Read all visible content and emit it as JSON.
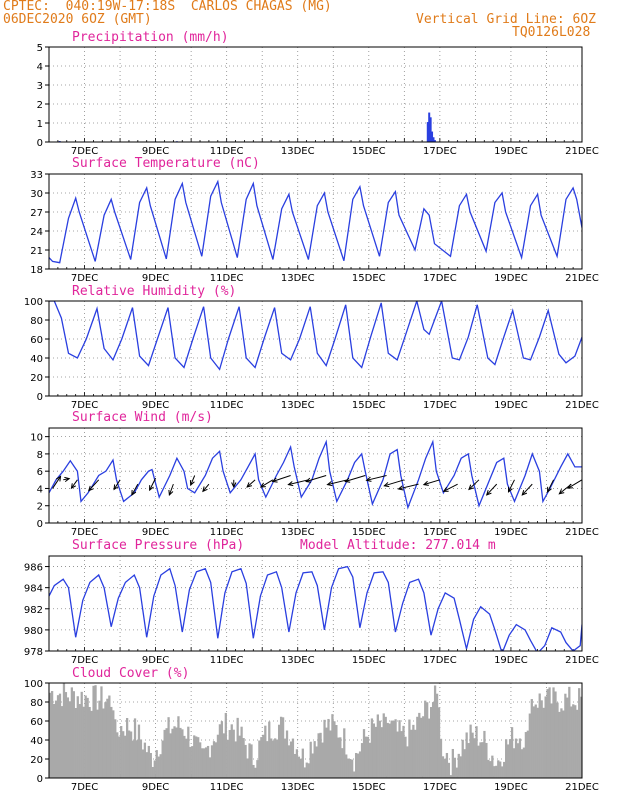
{
  "header": {
    "left_line1": "CPTEC:  040:19W-17:18S  CARLOS CHAGAS (MG)",
    "left_line2": "06DEC2020 6OZ (GMT)",
    "right_line1": "Vertical Grid Line: 6OZ",
    "right_line2": "TQ0126L028",
    "color": "#e07b1a"
  },
  "colors": {
    "line": "#2a3fe0",
    "title": "#e0259b",
    "bar": "#a9a9a9",
    "wind": "#000000"
  },
  "x_labels": [
    "7DEC",
    "9DEC",
    "11DEC",
    "13DEC",
    "15DEC",
    "17DEC",
    "19DEC",
    "21DEC"
  ],
  "chart_data": [
    {
      "type": "bar",
      "title": "Precipitation (mm/h)",
      "ylim": [
        0,
        5
      ],
      "yticks": [
        0,
        1,
        2,
        3,
        4,
        5
      ],
      "xlim_days": [
        0,
        15
      ],
      "series": [
        {
          "values": [
            [
              0.3,
              0.05
            ],
            [
              1.0,
              0.03
            ],
            [
              2.2,
              0.02
            ],
            [
              3.0,
              0.03
            ],
            [
              3.6,
              0.04
            ],
            [
              4.2,
              0.02
            ],
            [
              5.0,
              0.03
            ],
            [
              10.66,
              1.05
            ],
            [
              10.7,
              1.55
            ],
            [
              10.74,
              1.3
            ],
            [
              10.78,
              0.55
            ],
            [
              10.82,
              0.25
            ],
            [
              10.86,
              0.1
            ],
            [
              11.5,
              0.03
            ],
            [
              12.4,
              0.02
            ],
            [
              13.3,
              0.03
            ],
            [
              14.2,
              0.02
            ]
          ]
        }
      ]
    },
    {
      "type": "line",
      "title": "Surface Temperature (nC)",
      "ylim": [
        18,
        33
      ],
      "yticks": [
        18,
        21,
        24,
        27,
        30,
        33
      ],
      "xlim_days": [
        0,
        15
      ],
      "series": [
        {
          "x": [
            0,
            0.1,
            0.3,
            0.55,
            0.75,
            0.85,
            1.3,
            1.55,
            1.75,
            1.85,
            2.3,
            2.55,
            2.75,
            2.85,
            3.3,
            3.55,
            3.75,
            3.85,
            4.3,
            4.55,
            4.75,
            4.85,
            5.3,
            5.55,
            5.75,
            5.85,
            6.3,
            6.55,
            6.75,
            6.85,
            7.3,
            7.55,
            7.75,
            7.85,
            8.3,
            8.55,
            8.75,
            8.85,
            9.3,
            9.55,
            9.75,
            9.85,
            10.3,
            10.55,
            10.7,
            10.85,
            11.3,
            11.55,
            11.75,
            11.85,
            12.3,
            12.55,
            12.75,
            12.85,
            13.3,
            13.55,
            13.75,
            13.85,
            14.3,
            14.55,
            14.75,
            14.85,
            15
          ],
          "y": [
            19.8,
            19.2,
            19.0,
            26.0,
            29.2,
            27.0,
            19.2,
            26.5,
            29.0,
            27.0,
            19.5,
            28.5,
            30.8,
            28.0,
            19.6,
            29.0,
            31.5,
            28.5,
            20.0,
            29.5,
            31.8,
            28.5,
            19.8,
            29.0,
            31.5,
            28.0,
            19.5,
            27.5,
            29.8,
            27.0,
            19.5,
            28.0,
            30.0,
            27.0,
            19.3,
            29.0,
            31.0,
            28.0,
            20.0,
            28.5,
            30.2,
            26.5,
            21.0,
            27.5,
            26.5,
            22.0,
            20.0,
            28.0,
            29.8,
            27.0,
            20.8,
            28.5,
            30.0,
            27.0,
            19.8,
            28.0,
            29.8,
            26.5,
            20.0,
            29.0,
            30.8,
            29.0,
            24.5
          ]
        }
      ]
    },
    {
      "type": "line",
      "title": "Relative Humidity (%)",
      "ylim": [
        0,
        100
      ],
      "yticks": [
        0,
        20,
        40,
        60,
        80,
        100
      ],
      "xlim_days": [
        0,
        15
      ],
      "series": [
        {
          "x": [
            0,
            0.15,
            0.35,
            0.55,
            0.8,
            1.05,
            1.35,
            1.55,
            1.8,
            2.05,
            2.35,
            2.55,
            2.8,
            3.05,
            3.35,
            3.55,
            3.8,
            4.05,
            4.35,
            4.55,
            4.8,
            5.05,
            5.35,
            5.55,
            5.8,
            6.05,
            6.35,
            6.55,
            6.8,
            7.05,
            7.35,
            7.55,
            7.8,
            8.05,
            8.35,
            8.55,
            8.8,
            9.05,
            9.35,
            9.55,
            9.8,
            10.05,
            10.35,
            10.55,
            10.7,
            10.85,
            11.05,
            11.35,
            11.55,
            11.8,
            12.05,
            12.35,
            12.55,
            12.8,
            13.05,
            13.35,
            13.55,
            13.8,
            14.05,
            14.35,
            14.55,
            14.8,
            15
          ],
          "y": [
            100,
            100,
            82,
            45,
            40,
            60,
            92,
            50,
            38,
            60,
            93,
            42,
            32,
            60,
            93,
            40,
            30,
            60,
            94,
            40,
            28,
            60,
            94,
            40,
            30,
            60,
            93,
            45,
            38,
            60,
            94,
            45,
            32,
            60,
            96,
            40,
            30,
            62,
            98,
            45,
            38,
            66,
            100,
            70,
            65,
            80,
            100,
            40,
            38,
            62,
            96,
            40,
            33,
            62,
            90,
            40,
            38,
            62,
            90,
            44,
            35,
            42,
            62
          ]
        }
      ]
    },
    {
      "type": "line",
      "title": "Surface Wind (m/s)",
      "ylim": [
        0,
        11
      ],
      "yticks": [
        0,
        2,
        4,
        6,
        8,
        10
      ],
      "xlim_days": [
        0,
        15
      ],
      "series": [
        {
          "x": [
            0,
            0.2,
            0.4,
            0.6,
            0.8,
            0.9,
            1.1,
            1.4,
            1.6,
            1.8,
            1.9,
            2.1,
            2.4,
            2.6,
            2.8,
            2.9,
            3.1,
            3.4,
            3.6,
            3.8,
            3.9,
            4.1,
            4.4,
            4.6,
            4.8,
            4.9,
            5.1,
            5.4,
            5.6,
            5.8,
            5.9,
            6.1,
            6.4,
            6.6,
            6.8,
            6.9,
            7.1,
            7.4,
            7.6,
            7.8,
            7.9,
            8.1,
            8.4,
            8.6,
            8.8,
            8.9,
            9.1,
            9.4,
            9.6,
            9.8,
            9.9,
            10.1,
            10.4,
            10.6,
            10.8,
            10.9,
            11.1,
            11.4,
            11.6,
            11.8,
            11.9,
            12.1,
            12.4,
            12.6,
            12.8,
            12.9,
            13.1,
            13.4,
            13.6,
            13.8,
            13.9,
            14.1,
            14.4,
            14.6,
            14.8,
            15
          ],
          "y": [
            3.5,
            5.0,
            6.0,
            7.2,
            6.0,
            2.5,
            3.5,
            5.5,
            6.0,
            7.3,
            5.0,
            2.5,
            3.5,
            5.0,
            6.0,
            6.2,
            3.0,
            5.5,
            7.5,
            6.0,
            4.0,
            3.5,
            5.5,
            7.5,
            8.3,
            6.0,
            3.5,
            5.0,
            6.5,
            8.0,
            5.0,
            3.0,
            5.5,
            7.0,
            8.8,
            6.5,
            3.0,
            5.0,
            7.5,
            9.4,
            6.0,
            2.5,
            5.0,
            7.0,
            8.0,
            6.0,
            2.2,
            5.0,
            8.0,
            8.5,
            5.5,
            1.8,
            5.0,
            7.5,
            9.4,
            6.0,
            3.5,
            5.5,
            7.5,
            8.0,
            5.5,
            2.0,
            5.0,
            7.0,
            7.5,
            4.5,
            2.5,
            5.5,
            8.0,
            6.0,
            2.5,
            4.0,
            6.5,
            8.0,
            6.5,
            6.5
          ]
        }
      ],
      "wind_arrows": [
        [
          0.1,
          4.0,
          0.4,
          1.0
        ],
        [
          0.4,
          5.0,
          0.3,
          0.1
        ],
        [
          0.8,
          5.0,
          -0.3,
          -0.7
        ],
        [
          1.4,
          5.0,
          -0.5,
          -0.9
        ],
        [
          2.0,
          5.0,
          -0.3,
          -0.8
        ],
        [
          2.5,
          4.5,
          -0.3,
          -0.9
        ],
        [
          3.0,
          5.2,
          -0.3,
          -1.0
        ],
        [
          3.5,
          4.5,
          -0.2,
          -0.9
        ],
        [
          4.1,
          5.5,
          -0.2,
          -0.8
        ],
        [
          4.5,
          4.5,
          -0.3,
          -0.6
        ],
        [
          5.2,
          5.0,
          0.0,
          -0.6
        ],
        [
          5.8,
          5.0,
          -0.4,
          -0.6
        ],
        [
          6.3,
          5.0,
          -0.6,
          -0.6
        ],
        [
          6.8,
          5.5,
          -0.9,
          -0.5
        ],
        [
          7.3,
          5.0,
          -1.0,
          -0.4
        ],
        [
          7.8,
          5.5,
          -1.0,
          -0.5
        ],
        [
          8.4,
          5.0,
          -1.0,
          -0.4
        ],
        [
          8.9,
          5.5,
          -1.0,
          -0.5
        ],
        [
          9.5,
          5.5,
          -1.0,
          -0.4
        ],
        [
          10.0,
          5.0,
          -1.0,
          -0.5
        ],
        [
          10.4,
          4.5,
          -1.0,
          -0.4
        ],
        [
          11.0,
          5.0,
          -0.8,
          -0.4
        ],
        [
          11.5,
          4.5,
          -0.7,
          -0.6
        ],
        [
          12.1,
          5.0,
          -0.5,
          -0.8
        ],
        [
          12.6,
          4.5,
          -0.5,
          -0.9
        ],
        [
          13.1,
          5.0,
          -0.3,
          -1.0
        ],
        [
          13.6,
          4.5,
          -0.5,
          -0.9
        ],
        [
          14.2,
          5.0,
          -0.3,
          -1.0
        ],
        [
          14.7,
          4.5,
          -0.6,
          -0.8
        ],
        [
          15.0,
          5.0,
          -0.7,
          -0.7
        ]
      ]
    },
    {
      "type": "line",
      "title": "Surface Pressure (hPa)",
      "annotation": "Model Altitude: 277.014 m",
      "ylim": [
        978,
        987
      ],
      "yticks": [
        978,
        980,
        982,
        984,
        986
      ],
      "xlim_days": [
        0,
        15
      ],
      "series": [
        {
          "x": [
            0,
            0.15,
            0.4,
            0.55,
            0.75,
            0.95,
            1.15,
            1.4,
            1.55,
            1.75,
            1.95,
            2.15,
            2.4,
            2.55,
            2.75,
            2.95,
            3.15,
            3.4,
            3.55,
            3.75,
            3.95,
            4.15,
            4.4,
            4.55,
            4.75,
            4.95,
            5.15,
            5.4,
            5.55,
            5.75,
            5.95,
            6.15,
            6.4,
            6.55,
            6.75,
            6.95,
            7.15,
            7.4,
            7.55,
            7.75,
            7.95,
            8.15,
            8.4,
            8.55,
            8.75,
            8.95,
            9.15,
            9.4,
            9.55,
            9.75,
            9.95,
            10.15,
            10.4,
            10.55,
            10.75,
            10.95,
            11.15,
            11.4,
            11.55,
            11.75,
            11.95,
            12.15,
            12.4,
            12.55,
            12.75,
            12.95,
            13.15,
            13.4,
            13.55,
            13.75,
            13.95,
            14.15,
            14.4,
            14.55,
            14.75,
            14.95,
            15
          ],
          "y": [
            983.2,
            984.2,
            984.8,
            984.0,
            979.3,
            982.8,
            984.5,
            985.2,
            984.0,
            980.3,
            983.0,
            984.5,
            985.2,
            984.0,
            979.3,
            983.2,
            985.2,
            985.8,
            984.2,
            979.8,
            983.8,
            985.5,
            985.8,
            984.5,
            979.2,
            983.5,
            985.5,
            985.8,
            984.4,
            979.2,
            983.2,
            985.2,
            985.5,
            984.0,
            979.8,
            983.5,
            985.4,
            985.5,
            984.2,
            980.0,
            984.0,
            985.8,
            986.0,
            985.0,
            980.2,
            983.5,
            985.4,
            985.5,
            984.5,
            979.8,
            982.5,
            984.5,
            984.8,
            983.5,
            979.5,
            982.0,
            983.5,
            983.0,
            981.0,
            978.2,
            981.0,
            982.2,
            981.5,
            980.0,
            977.8,
            979.5,
            980.5,
            980.0,
            979.0,
            977.8,
            978.5,
            980.2,
            979.8,
            978.8,
            978.0,
            978.5,
            980.5
          ]
        }
      ]
    },
    {
      "type": "bar",
      "title": "Cloud Cover (%)",
      "ylim": [
        0,
        100
      ],
      "yticks": [
        0,
        20,
        40,
        60,
        80,
        100
      ],
      "xlim_days": [
        0,
        15
      ]
    }
  ]
}
